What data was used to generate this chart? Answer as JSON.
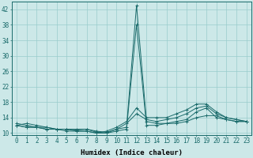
{
  "xlabel": "Humidex (Indice chaleur)",
  "background_color": "#cce8e8",
  "grid_color": "#99cccc",
  "line_color": "#1a6b6b",
  "x_labels": [
    "0",
    "1",
    "2",
    "3",
    "4",
    "5",
    "6",
    "7",
    "8",
    "9",
    "10",
    "11",
    "12",
    "13",
    "14",
    "15",
    "16",
    "17",
    "18",
    "19",
    "20",
    "21",
    "22",
    "23"
  ],
  "ylim": [
    9.5,
    44
  ],
  "yticks": [
    10,
    14,
    18,
    22,
    26,
    30,
    34,
    38,
    42
  ],
  "series": [
    [
      12.0,
      12.5,
      12.0,
      11.5,
      11.0,
      11.0,
      11.0,
      11.0,
      10.5,
      10.2,
      11.0,
      11.5,
      43.0,
      13.0,
      12.5,
      12.5,
      12.5,
      13.0,
      14.0,
      14.5,
      14.5,
      13.5,
      13.0,
      13.0
    ],
    [
      12.0,
      11.5,
      11.5,
      11.5,
      11.0,
      11.0,
      10.8,
      11.0,
      10.2,
      10.0,
      10.5,
      11.0,
      38.0,
      12.0,
      12.0,
      12.5,
      13.0,
      13.5,
      15.5,
      16.5,
      14.0,
      13.5,
      13.0,
      13.0
    ],
    [
      12.0,
      11.5,
      11.5,
      11.0,
      11.0,
      11.0,
      10.5,
      10.5,
      10.0,
      10.0,
      11.0,
      12.5,
      15.0,
      13.5,
      13.0,
      13.5,
      14.0,
      15.0,
      16.5,
      17.0,
      15.0,
      14.0,
      13.5,
      13.0
    ],
    [
      12.5,
      12.0,
      11.5,
      11.0,
      11.0,
      10.5,
      10.5,
      10.5,
      10.0,
      10.5,
      11.5,
      13.0,
      16.5,
      14.0,
      14.0,
      14.0,
      15.0,
      16.0,
      17.5,
      17.5,
      15.5,
      14.0,
      13.5,
      13.0
    ]
  ]
}
